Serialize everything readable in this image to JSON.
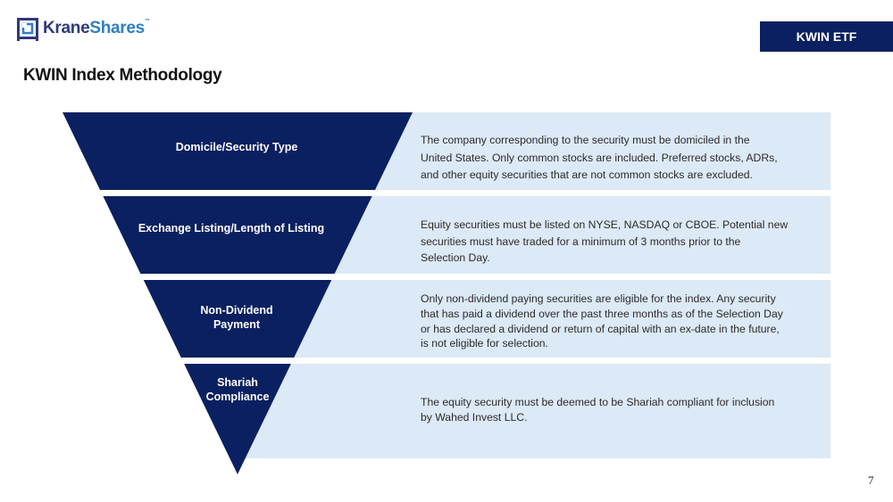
{
  "header": {
    "logo": {
      "part1": "Krane",
      "part2": "Shares",
      "tm": "™"
    },
    "badge": "KWIN ETF",
    "title": "KWIN Index Methodology"
  },
  "colors": {
    "navy": "#0b2060",
    "light_blue": "#dce9f6",
    "logo_blue": "#2f7fc1"
  },
  "stages": [
    {
      "label_lines": [
        "Domicile/Security Type"
      ],
      "description_lines": [
        "The company corresponding to the security must be domiciled in the",
        "United States. Only common stocks are included. Preferred stocks, ADRs,",
        "and other equity securities that are not common stocks are excluded."
      ]
    },
    {
      "label_lines": [
        "Exchange Listing/Length of Listing"
      ],
      "description_lines": [
        "Equity securities must be listed on NYSE, NASDAQ or CBOE. Potential new",
        "securities must have traded for a minimum of 3 months prior to the",
        "Selection Day."
      ]
    },
    {
      "label_lines": [
        "Non-Dividend",
        "Payment"
      ],
      "description_lines": [
        "Only non-dividend paying securities are eligible for the index. Any security",
        "that has paid a dividend over the past three months as of the Selection Day",
        "or has declared a dividend or return of capital with an ex-date in the future,",
        "is not eligible for selection."
      ]
    },
    {
      "label_lines": [
        "Shariah",
        "Compliance"
      ],
      "description_lines": [
        "The equity security must be deemed to be Shariah compliant for inclusion",
        "by Wahed Invest LLC."
      ]
    }
  ],
  "page_number": "7"
}
